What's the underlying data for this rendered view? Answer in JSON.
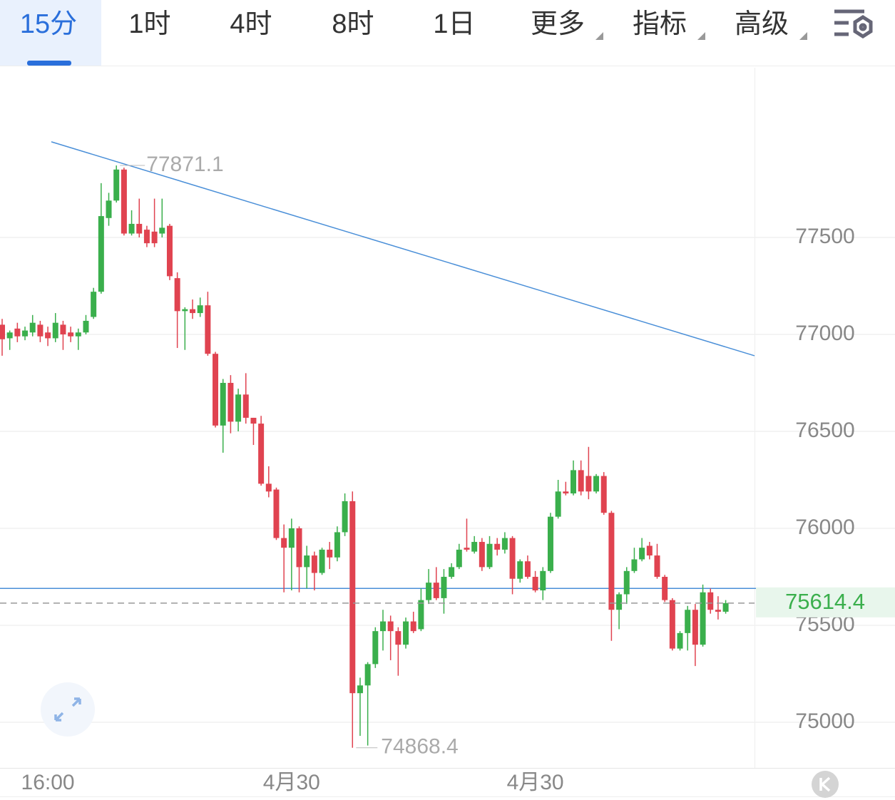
{
  "tabs": [
    "15分",
    "1时",
    "4时",
    "8时",
    "1日",
    "更多",
    "指标",
    "高级"
  ],
  "active_tab": 0,
  "chart_data": {
    "type": "candlestick",
    "categories": [
      null,
      null,
      null,
      null,
      null,
      null,
      "16:00",
      null,
      null,
      null,
      null,
      null,
      null,
      null,
      null,
      null,
      null,
      null,
      null,
      null,
      null,
      null,
      null,
      null,
      null,
      null,
      null,
      null,
      null,
      null,
      null,
      null,
      null,
      null,
      null,
      null,
      null,
      null,
      "4月30",
      null,
      null,
      null,
      null,
      null,
      null,
      null,
      null,
      null,
      null,
      null,
      null,
      null,
      null,
      null,
      null,
      null,
      null,
      null,
      null,
      null,
      null,
      null,
      null,
      null,
      null,
      null,
      null,
      null,
      null,
      null,
      "4月30",
      null,
      null,
      null,
      null,
      null,
      null,
      null,
      null,
      null,
      null,
      null,
      null,
      null,
      null,
      null,
      null,
      null,
      null,
      null,
      null,
      null,
      null,
      null,
      null,
      null
    ],
    "open": [
      77050,
      76980,
      77030,
      76990,
      77010,
      77050,
      77010,
      76980,
      77050,
      77010,
      76990,
      77010,
      77090,
      77220,
      77600,
      77690,
      77850,
      77520,
      77570,
      77540,
      77530,
      77520,
      77560,
      77290,
      77120,
      77130,
      77110,
      77150,
      76900,
      76530,
      76750,
      76550,
      76690,
      76570,
      76540,
      76230,
      76200,
      75950,
      75900,
      76000,
      75800,
      75860,
      75770,
      75890,
      75850,
      75980,
      76140,
      75150,
      75190,
      75300,
      75470,
      75520,
      75470,
      75400,
      75520,
      75480,
      75630,
      75720,
      75640,
      75750,
      75800,
      75900,
      75880,
      75930,
      75800,
      75920,
      75890,
      75950,
      75740,
      75830,
      75750,
      75680,
      75780,
      76060,
      76190,
      76180,
      76300,
      76270,
      76190,
      76270,
      76080,
      75580,
      75660,
      75780,
      75840,
      75910,
      75860,
      75750,
      75630,
      75380,
      75460,
      75580,
      75400,
      75670,
      75580,
      75570
    ],
    "high": [
      77080,
      77020,
      77060,
      77040,
      77100,
      77070,
      77040,
      77110,
      77070,
      77040,
      77030,
      77100,
      77240,
      77780,
      77730,
      77871.1,
      77860,
      77640,
      77700,
      77560,
      77700,
      77700,
      77570,
      77320,
      77140,
      77180,
      77190,
      77220,
      76910,
      76770,
      76790,
      76720,
      76800,
      76570,
      76580,
      76320,
      76210,
      76020,
      76050,
      76010,
      75910,
      75880,
      75900,
      75930,
      76010,
      76180,
      76190,
      75230,
      75310,
      75490,
      75580,
      75550,
      75490,
      75540,
      75570,
      75690,
      75790,
      75800,
      75790,
      75820,
      75920,
      76050,
      75960,
      75950,
      75960,
      75950,
      75980,
      75960,
      75840,
      75860,
      75780,
      75800,
      76080,
      76250,
      76240,
      76350,
      76350,
      76420,
      76280,
      76290,
      76090,
      75670,
      75800,
      75900,
      75950,
      75930,
      75920,
      75760,
      75640,
      75470,
      75600,
      75610,
      75710,
      75690,
      75650,
      75630
    ],
    "low": [
      76890,
      76920,
      76960,
      76970,
      76990,
      76960,
      76940,
      76960,
      76920,
      76960,
      76920,
      77000,
      77080,
      77210,
      77560,
      77680,
      77510,
      77510,
      77500,
      77450,
      77450,
      77500,
      77280,
      76930,
      76920,
      77080,
      77090,
      76890,
      76520,
      76390,
      76490,
      76500,
      76540,
      76430,
      76220,
      76160,
      75940,
      75670,
      75680,
      75670,
      75690,
      75680,
      75760,
      75790,
      75830,
      75960,
      74868.4,
      74930,
      74880,
      75280,
      75370,
      75320,
      75240,
      75380,
      75460,
      75470,
      75610,
      75630,
      75560,
      75740,
      75790,
      75880,
      75870,
      75780,
      75790,
      75860,
      75870,
      75660,
      75720,
      75740,
      75670,
      75630,
      75770,
      76050,
      76170,
      76170,
      76170,
      76150,
      76180,
      76070,
      75420,
      75480,
      75610,
      75770,
      75830,
      75840,
      75740,
      75620,
      75370,
      75370,
      75370,
      75290,
      75390,
      75560,
      75530,
      75560
    ],
    "close": [
      76975,
      77010,
      76990,
      77020,
      77060,
      76990,
      76980,
      77060,
      77000,
      76990,
      77010,
      77070,
      77220,
      77610,
      77690,
      77850,
      77520,
      77570,
      77520,
      77470,
      77470,
      77550,
      77300,
      77120,
      77130,
      77110,
      77150,
      76900,
      76530,
      76750,
      76550,
      76690,
      76570,
      76540,
      76230,
      76190,
      75950,
      75900,
      76000,
      75800,
      75860,
      75770,
      75890,
      75850,
      75980,
      76140,
      75150,
      75190,
      75300,
      75470,
      75520,
      75470,
      75400,
      75520,
      75470,
      75630,
      75720,
      75640,
      75750,
      75800,
      75890,
      75890,
      75930,
      75800,
      75920,
      75890,
      75950,
      75740,
      75830,
      75750,
      75680,
      75780,
      76060,
      76190,
      76180,
      76300,
      76190,
      76190,
      76270,
      76080,
      75580,
      75660,
      75780,
      75840,
      75900,
      75860,
      75750,
      75630,
      75380,
      75460,
      75580,
      75400,
      75670,
      75580,
      75570,
      75614.4
    ],
    "up_color": "#3aaf4c",
    "down_color": "#e04350",
    "ylim": [
      74772,
      78375
    ],
    "yticks": [
      75000,
      75500,
      76000,
      76500,
      77000,
      77500
    ],
    "grid": true,
    "trend_line": [
      77993,
      76890
    ],
    "h_line": 75690,
    "line_color": "#4a8fd8"
  }
}
